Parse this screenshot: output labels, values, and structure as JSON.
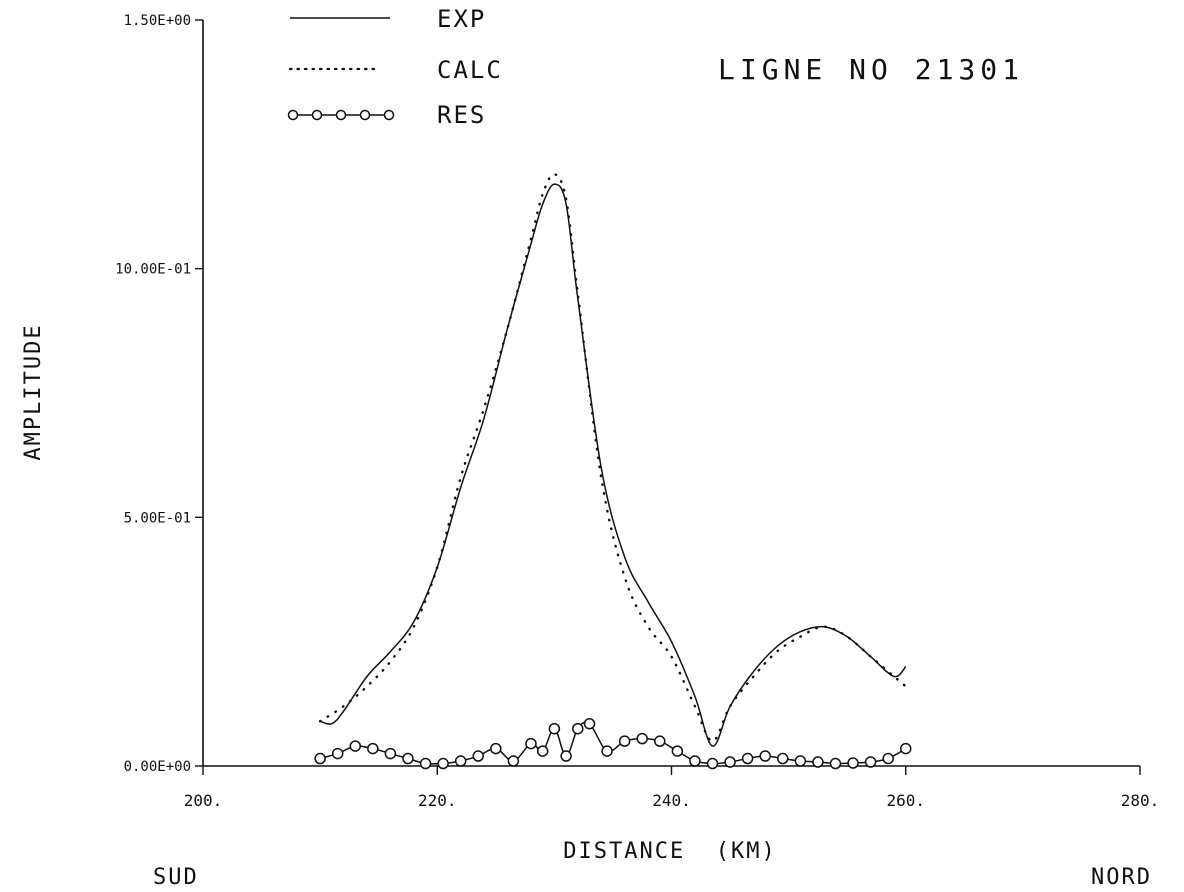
{
  "chart_data": {
    "type": "line",
    "title": "LIGNE NO 21301",
    "xlabel": "DISTANCE  (KM)",
    "ylabel": "AMPLITUDE",
    "xlim": [
      200,
      280
    ],
    "ylim": [
      0,
      1.5
    ],
    "x_ticks": [
      {
        "value": 200,
        "label": "200."
      },
      {
        "value": 220,
        "label": "220."
      },
      {
        "value": 240,
        "label": "240."
      },
      {
        "value": 260,
        "label": "260."
      },
      {
        "value": 280,
        "label": "280."
      }
    ],
    "y_ticks": [
      {
        "value": 0,
        "label": "0.00E+00"
      },
      {
        "value": 0.5,
        "label": "5.00E-01"
      },
      {
        "value": 1.0,
        "label": "10.00E-01"
      },
      {
        "value": 1.5,
        "label": "1.50E+00"
      }
    ],
    "grid": false,
    "legend_position": "top-left",
    "annotations": {
      "left": "SUD",
      "right": "NORD"
    },
    "series": [
      {
        "name": "EXP",
        "style": "solid",
        "x": [
          210,
          211,
          212,
          214,
          216,
          218,
          220,
          222,
          224,
          226,
          228,
          229,
          230,
          231,
          232,
          234,
          236,
          238,
          240,
          242,
          243.5,
          245,
          247,
          249,
          251,
          253,
          255,
          257,
          259,
          260
        ],
        "y": [
          0.09,
          0.085,
          0.11,
          0.18,
          0.23,
          0.29,
          0.4,
          0.56,
          0.7,
          0.88,
          1.05,
          1.13,
          1.17,
          1.13,
          0.94,
          0.6,
          0.42,
          0.33,
          0.25,
          0.14,
          0.04,
          0.12,
          0.19,
          0.24,
          0.27,
          0.28,
          0.26,
          0.22,
          0.18,
          0.2
        ]
      },
      {
        "name": "CALC",
        "style": "dotted",
        "x": [
          210,
          212,
          214,
          216,
          218,
          220,
          222,
          224,
          226,
          228,
          229,
          230,
          231,
          232,
          234,
          236,
          238,
          240,
          242,
          243.5,
          245,
          247,
          249,
          251,
          253,
          255,
          257,
          259,
          260
        ],
        "y": [
          0.09,
          0.12,
          0.16,
          0.21,
          0.28,
          0.4,
          0.58,
          0.72,
          0.88,
          1.06,
          1.15,
          1.19,
          1.14,
          0.95,
          0.58,
          0.38,
          0.28,
          0.22,
          0.12,
          0.05,
          0.12,
          0.18,
          0.23,
          0.26,
          0.28,
          0.26,
          0.22,
          0.18,
          0.16
        ]
      },
      {
        "name": "RES",
        "style": "solid-circle",
        "x": [
          210,
          211.5,
          213,
          214.5,
          216,
          217.5,
          219,
          220.5,
          222,
          223.5,
          225,
          226.5,
          228,
          229,
          230,
          231,
          232,
          233,
          234.5,
          236,
          237.5,
          239,
          240.5,
          242,
          243.5,
          245,
          246.5,
          248,
          249.5,
          251,
          252.5,
          254,
          255.5,
          257,
          258.5,
          260
        ],
        "y": [
          0.015,
          0.025,
          0.04,
          0.035,
          0.025,
          0.015,
          0.005,
          0.005,
          0.01,
          0.02,
          0.035,
          0.01,
          0.045,
          0.03,
          0.075,
          0.02,
          0.075,
          0.085,
          0.03,
          0.05,
          0.055,
          0.05,
          0.03,
          0.01,
          0.005,
          0.008,
          0.015,
          0.02,
          0.015,
          0.01,
          0.008,
          0.005,
          0.006,
          0.008,
          0.015,
          0.035
        ]
      }
    ]
  }
}
